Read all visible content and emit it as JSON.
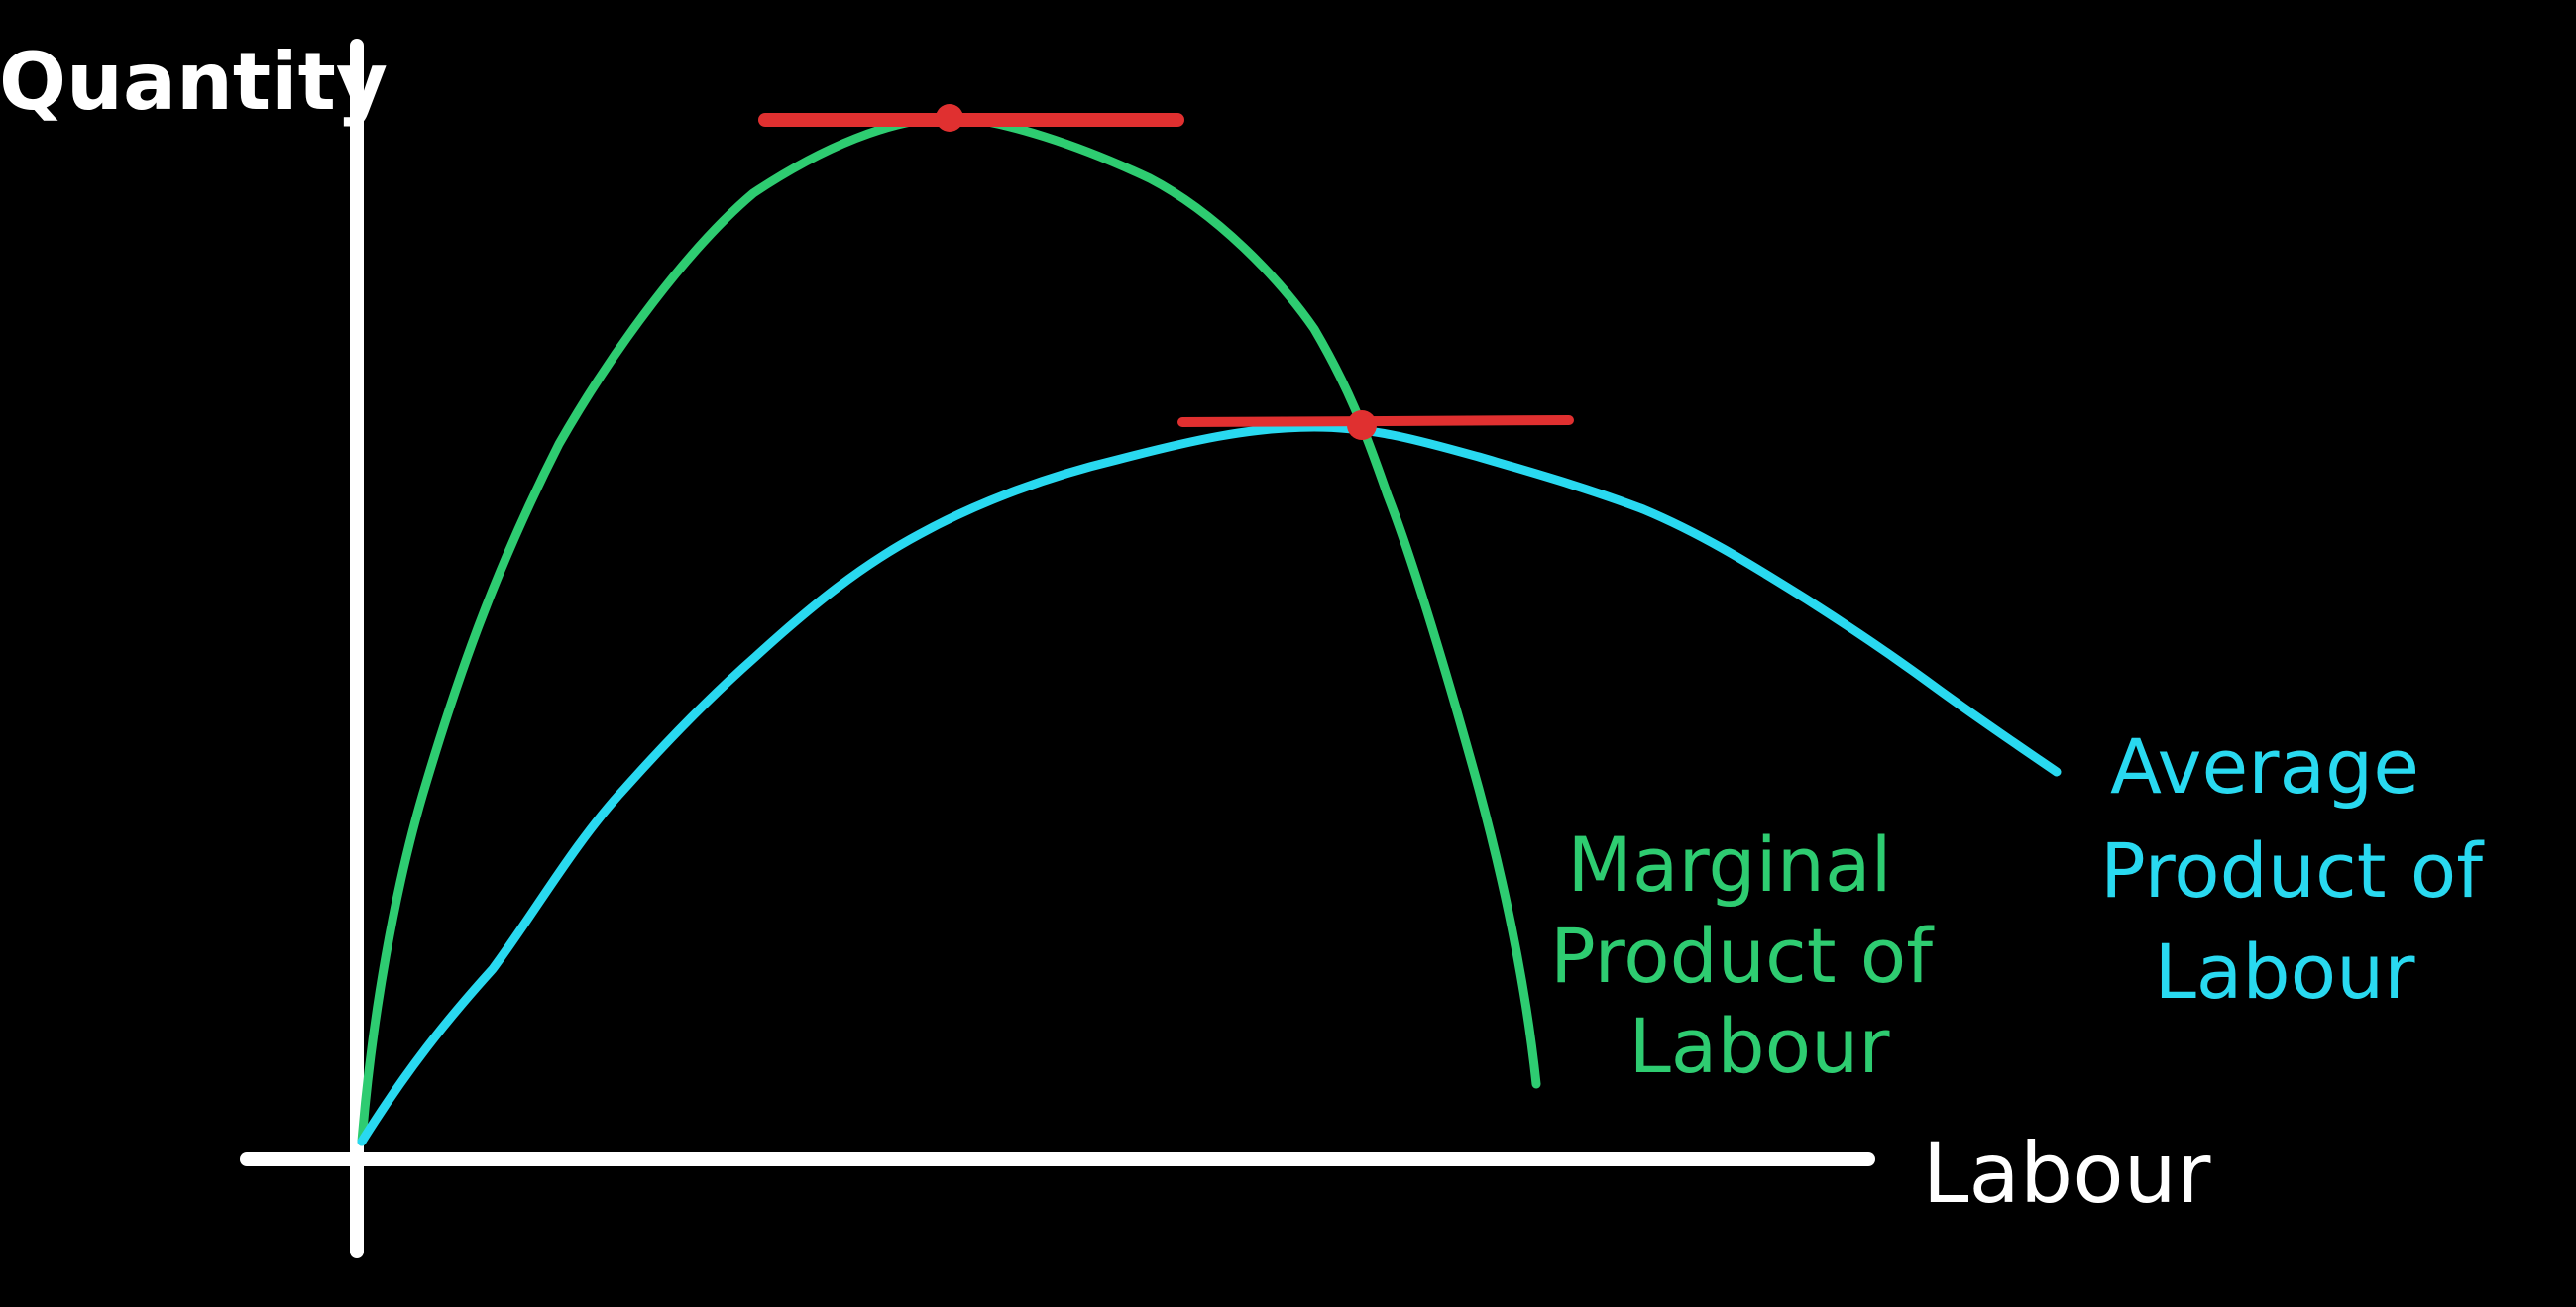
{
  "axes": {
    "y_label": "Quantity",
    "x_label": "Labour"
  },
  "curves": [
    {
      "label": [
        "Marginal",
        "Product of",
        "Labour"
      ]
    },
    {
      "label": [
        "Average",
        "Product of",
        "Labour"
      ]
    }
  ]
}
